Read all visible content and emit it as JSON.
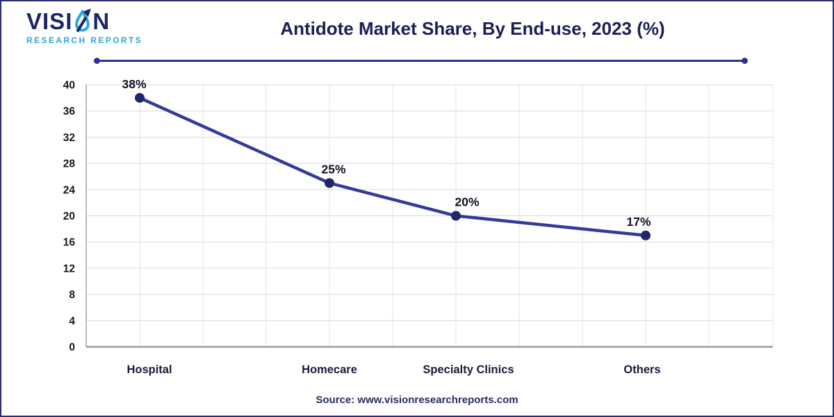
{
  "page": {
    "border_color": "#2a2d74",
    "background": "#ffffff"
  },
  "header": {
    "logo": {
      "brand": "VISION",
      "brand_start": "VISI",
      "brand_end": "N",
      "subtitle": "RESEARCH REPORTS",
      "navy": "#1b2766",
      "blue": "#2aa8e0"
    },
    "title": "Antidote Market Share, By End-use, 2023 (%)"
  },
  "chart_data": {
    "type": "line",
    "title": "Antidote Market Share, By End-use, 2023 (%)",
    "categories": [
      "Hospital",
      "Homecare",
      "Specialty Clinics",
      "Others"
    ],
    "values": [
      38,
      25,
      20,
      17
    ],
    "data_labels": [
      "38%",
      "25%",
      "20%",
      "17%"
    ],
    "xlabel": "",
    "ylabel": "",
    "ylim": [
      0,
      40
    ],
    "yticks": [
      0,
      4,
      8,
      12,
      16,
      20,
      24,
      28,
      32,
      36,
      40
    ],
    "grid": true,
    "legend": "none",
    "line_color": "#333a99",
    "marker_color": "#1f2769",
    "grid_color_h": "#d9d9d9",
    "grid_color_v": "#e3e3e3",
    "axis_color": "#a3a3a3",
    "tick_label_color": "#161616",
    "category_label_color": "#191b3a",
    "data_label_color": "#0f1022"
  },
  "footer": {
    "source": "Source: www.visionresearchreports.com"
  },
  "divider_color": "#2e3192"
}
